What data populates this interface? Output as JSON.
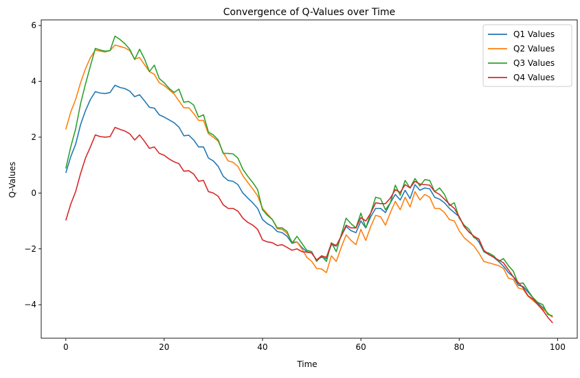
{
  "chart_data": {
    "type": "line",
    "title": "Convergence of Q-Values over Time",
    "xlabel": "Time",
    "ylabel": "Q-Values",
    "xlim": [
      -5,
      104
    ],
    "ylim": [
      -5.2,
      6.2
    ],
    "xticks": [
      0,
      20,
      40,
      60,
      80,
      100
    ],
    "yticks": [
      -4,
      -2,
      0,
      2,
      4,
      6
    ],
    "xtick_labels": [
      "0",
      "20",
      "40",
      "60",
      "80",
      "100"
    ],
    "ytick_labels": [
      "−4",
      "−2",
      "0",
      "2",
      "4",
      "6"
    ],
    "grid": false,
    "legend_position": "top-right",
    "x": [
      0,
      1,
      2,
      3,
      4,
      5,
      6,
      7,
      8,
      9,
      10,
      11,
      12,
      13,
      14,
      15,
      16,
      17,
      18,
      19,
      20,
      21,
      22,
      23,
      24,
      25,
      26,
      27,
      28,
      29,
      30,
      31,
      32,
      33,
      34,
      35,
      36,
      37,
      38,
      39,
      40,
      41,
      42,
      43,
      44,
      45,
      46,
      47,
      48,
      49,
      50,
      51,
      52,
      53,
      54,
      55,
      56,
      57,
      58,
      59,
      60,
      61,
      62,
      63,
      64,
      65,
      66,
      67,
      68,
      69,
      70,
      71,
      72,
      73,
      74,
      75,
      76,
      77,
      78,
      79,
      80,
      81,
      82,
      83,
      84,
      85,
      86,
      87,
      88,
      89,
      90,
      91,
      92,
      93,
      94,
      95,
      96,
      97,
      98,
      99
    ],
    "series": [
      {
        "name": "Q1 Values",
        "color": "#1f77b4",
        "values": [
          0.72,
          1.3,
          1.75,
          2.45,
          2.95,
          3.35,
          3.63,
          3.58,
          3.56,
          3.6,
          3.86,
          3.78,
          3.74,
          3.65,
          3.45,
          3.52,
          3.3,
          3.07,
          3.04,
          2.8,
          2.72,
          2.62,
          2.52,
          2.36,
          2.05,
          2.07,
          1.9,
          1.65,
          1.65,
          1.25,
          1.15,
          0.95,
          0.6,
          0.45,
          0.42,
          0.3,
          0.0,
          -0.18,
          -0.35,
          -0.55,
          -0.95,
          -1.1,
          -1.2,
          -1.38,
          -1.42,
          -1.55,
          -1.8,
          -1.75,
          -1.95,
          -2.1,
          -2.15,
          -2.4,
          -2.3,
          -2.35,
          -1.85,
          -1.9,
          -1.55,
          -1.2,
          -1.35,
          -1.42,
          -1.0,
          -1.25,
          -0.85,
          -0.55,
          -0.55,
          -0.7,
          -0.35,
          -0.05,
          -0.25,
          0.1,
          -0.2,
          0.3,
          0.1,
          0.18,
          0.15,
          -0.15,
          -0.22,
          -0.35,
          -0.55,
          -0.7,
          -0.85,
          -1.2,
          -1.4,
          -1.55,
          -1.75,
          -2.1,
          -2.2,
          -2.3,
          -2.45,
          -2.62,
          -2.85,
          -3.0,
          -3.3,
          -3.35,
          -3.55,
          -3.75,
          -3.95,
          -4.1,
          -4.3,
          -4.45
        ]
      },
      {
        "name": "Q2 Values",
        "color": "#ff7f0e",
        "values": [
          2.28,
          2.9,
          3.35,
          3.95,
          4.45,
          4.85,
          5.12,
          5.08,
          5.05,
          5.1,
          5.3,
          5.25,
          5.2,
          5.1,
          4.8,
          4.85,
          4.6,
          4.35,
          4.25,
          3.95,
          3.85,
          3.7,
          3.55,
          3.3,
          3.05,
          3.05,
          2.85,
          2.6,
          2.6,
          2.12,
          2.0,
          1.85,
          1.45,
          1.15,
          1.1,
          0.95,
          0.62,
          0.38,
          0.15,
          -0.1,
          -0.55,
          -0.75,
          -0.95,
          -1.28,
          -1.3,
          -1.45,
          -1.75,
          -1.75,
          -2.0,
          -2.3,
          -2.45,
          -2.7,
          -2.72,
          -2.85,
          -2.25,
          -2.45,
          -1.95,
          -1.5,
          -1.7,
          -1.85,
          -1.3,
          -1.7,
          -1.2,
          -0.8,
          -0.85,
          -1.15,
          -0.7,
          -0.3,
          -0.6,
          -0.15,
          -0.5,
          0.05,
          -0.25,
          -0.05,
          -0.15,
          -0.55,
          -0.55,
          -0.7,
          -0.95,
          -1.0,
          -1.35,
          -1.6,
          -1.75,
          -1.9,
          -2.15,
          -2.45,
          -2.5,
          -2.55,
          -2.6,
          -2.7,
          -3.05,
          -3.1,
          -3.4,
          -3.45,
          -3.7,
          -3.85,
          -4.0,
          -4.15,
          -4.3,
          -4.45
        ]
      },
      {
        "name": "Q3 Values",
        "color": "#2ca02c",
        "values": [
          0.88,
          1.65,
          2.3,
          3.2,
          3.9,
          4.55,
          5.18,
          5.12,
          5.08,
          5.1,
          5.62,
          5.5,
          5.35,
          5.15,
          4.78,
          5.15,
          4.8,
          4.35,
          4.58,
          4.1,
          3.95,
          3.75,
          3.6,
          3.72,
          3.25,
          3.28,
          3.15,
          2.72,
          2.8,
          2.18,
          2.08,
          1.9,
          1.42,
          1.42,
          1.4,
          1.25,
          0.85,
          0.6,
          0.38,
          0.12,
          -0.6,
          -0.8,
          -0.95,
          -1.25,
          -1.25,
          -1.38,
          -1.8,
          -1.55,
          -1.8,
          -2.05,
          -2.1,
          -2.45,
          -2.25,
          -2.45,
          -1.78,
          -2.1,
          -1.5,
          -0.9,
          -1.1,
          -1.25,
          -0.72,
          -1.25,
          -0.72,
          -0.15,
          -0.2,
          -0.6,
          -0.35,
          0.28,
          -0.08,
          0.45,
          0.18,
          0.52,
          0.25,
          0.48,
          0.45,
          0.05,
          0.18,
          -0.05,
          -0.45,
          -0.35,
          -0.9,
          -1.15,
          -1.3,
          -1.6,
          -1.65,
          -2.1,
          -2.15,
          -2.25,
          -2.45,
          -2.35,
          -2.6,
          -2.8,
          -3.25,
          -3.22,
          -3.5,
          -3.75,
          -3.92,
          -4.0,
          -4.35,
          -4.4
        ]
      },
      {
        "name": "Q4 Values",
        "color": "#d62728",
        "values": [
          -0.98,
          -0.4,
          0.05,
          0.7,
          1.25,
          1.65,
          2.08,
          2.02,
          2.0,
          2.02,
          2.35,
          2.28,
          2.22,
          2.12,
          1.9,
          2.08,
          1.85,
          1.6,
          1.65,
          1.42,
          1.35,
          1.22,
          1.12,
          1.05,
          0.78,
          0.8,
          0.68,
          0.42,
          0.45,
          0.05,
          0.0,
          -0.12,
          -0.42,
          -0.55,
          -0.55,
          -0.65,
          -0.9,
          -1.05,
          -1.15,
          -1.3,
          -1.68,
          -1.75,
          -1.78,
          -1.88,
          -1.85,
          -1.95,
          -2.05,
          -2.0,
          -2.1,
          -2.12,
          -2.15,
          -2.4,
          -2.25,
          -2.3,
          -1.8,
          -1.88,
          -1.55,
          -1.15,
          -1.25,
          -1.25,
          -0.88,
          -1.0,
          -0.72,
          -0.35,
          -0.38,
          -0.38,
          -0.18,
          0.12,
          0.02,
          0.3,
          0.18,
          0.42,
          0.32,
          0.3,
          0.28,
          0.05,
          -0.05,
          -0.22,
          -0.4,
          -0.55,
          -0.85,
          -1.2,
          -1.4,
          -1.55,
          -1.65,
          -2.05,
          -2.2,
          -2.3,
          -2.4,
          -2.5,
          -2.75,
          -3.0,
          -3.2,
          -3.4,
          -3.68,
          -3.8,
          -4.0,
          -4.2,
          -4.45,
          -4.65
        ]
      }
    ]
  }
}
